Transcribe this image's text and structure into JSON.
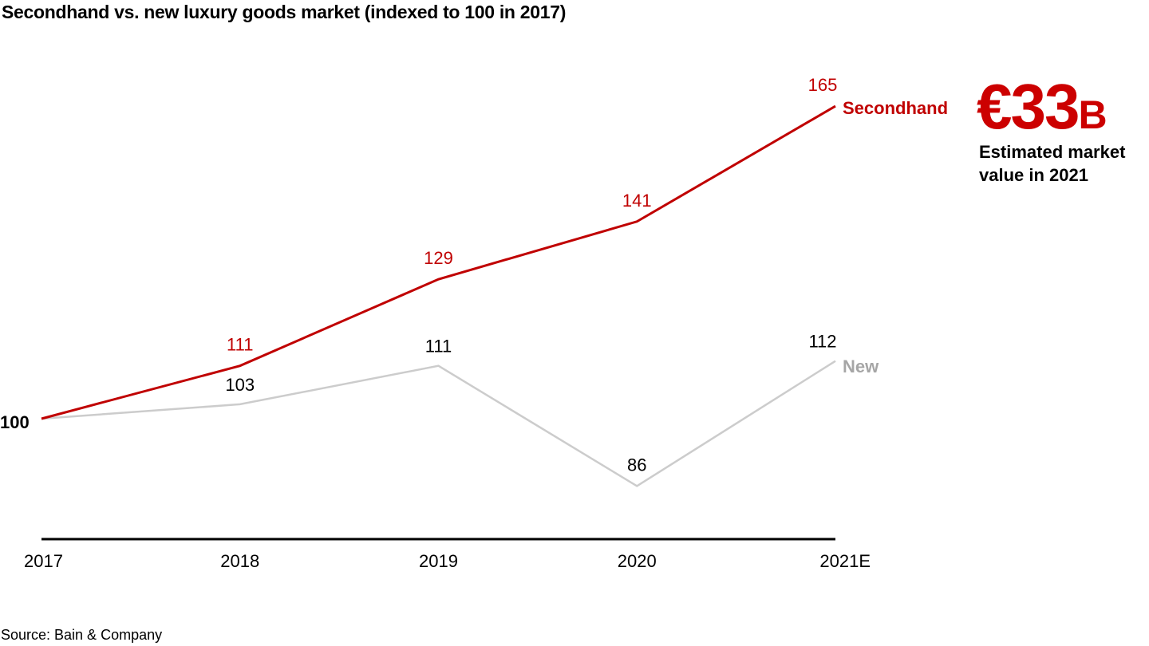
{
  "title": "Secondhand vs. new luxury goods market (indexed to 100 in 2017)",
  "source": "Source: Bain & Company",
  "callout": {
    "value": "€33",
    "unit": "B",
    "caption_line1": "Estimated market",
    "caption_line2": "value in 2021",
    "color": "#cc0000"
  },
  "chart_data": {
    "type": "line",
    "title": "Secondhand vs. new luxury goods market (indexed to 100 in 2017)",
    "xlabel": "",
    "ylabel": "",
    "categories": [
      "2017",
      "2018",
      "2019",
      "2020",
      "2021E"
    ],
    "ylim": [
      75,
      175
    ],
    "grid": false,
    "base_label": "100",
    "series": [
      {
        "name": "Secondhand",
        "color": "#c00000",
        "values": [
          100,
          111,
          129,
          141,
          165
        ],
        "labels": [
          "",
          "111",
          "129",
          "141",
          "165"
        ]
      },
      {
        "name": "New",
        "color": "#cccccc",
        "label_color": "#000000",
        "legend_color": "#a6a6a6",
        "values": [
          100,
          103,
          111,
          86,
          112
        ],
        "labels": [
          "",
          "103",
          "111",
          "86",
          "112"
        ]
      }
    ]
  }
}
